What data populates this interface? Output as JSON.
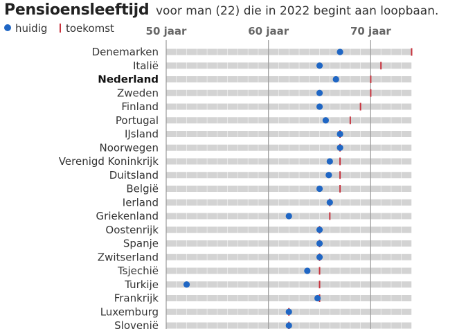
{
  "header": {
    "title": "Pensioensleeftijd",
    "subtitle": "voor man (22) die in 2022 begint aan loopbaan."
  },
  "legend": {
    "current_label": "huidig",
    "future_label": "toekomst"
  },
  "colors": {
    "current": "#1f66c4",
    "future": "#c8313c",
    "bar": "#d3d3d3",
    "grid": "#9a9a9a"
  },
  "chart_data": {
    "type": "dot-range",
    "xlim": [
      50,
      74
    ],
    "ticks": [
      50,
      60,
      70
    ],
    "tick_labels": [
      "50 jaar",
      "60 jaar",
      "70 jaar"
    ],
    "highlight": "Nederland",
    "series": [
      {
        "name": "huidig",
        "marker": "dot"
      },
      {
        "name": "toekomst",
        "marker": "tick"
      }
    ],
    "categories": [
      "Denemarken",
      "Italië",
      "Nederland",
      "Zweden",
      "Finland",
      "Portugal",
      "IJsland",
      "Noorwegen",
      "Verenigd Koninkrijk",
      "Duitsland",
      "België",
      "Ierland",
      "Griekenland",
      "Oostenrijk",
      "Spanje",
      "Zwitserland",
      "Tsjechië",
      "Turkije",
      "Frankrijk",
      "Luxemburg",
      "Slovenië"
    ],
    "current": [
      67,
      65,
      66.6,
      65,
      65,
      65.6,
      67,
      67,
      66,
      65.9,
      65,
      66,
      62,
      65,
      65,
      65,
      63.8,
      52,
      64.8,
      62,
      62
    ],
    "future": [
      74,
      71,
      70,
      70,
      69,
      68,
      67,
      67,
      67,
      67,
      67,
      66,
      66,
      65,
      65,
      65,
      65,
      65,
      65,
      62,
      62
    ]
  }
}
